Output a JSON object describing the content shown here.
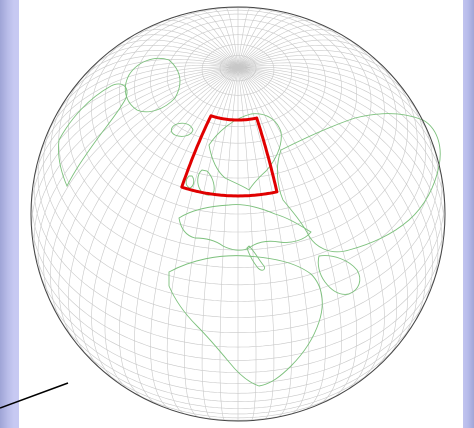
{
  "colors": {
    "background": "#c7c9f2",
    "panel": "#ffffff",
    "graticule": "#c8c8c8",
    "coastline": "#7cc07c",
    "globe_outline": "#444444",
    "region_box": "#e00000",
    "pointer_line": "#000000"
  },
  "map": {
    "projection": "orthographic",
    "graticule_step_degrees": 5,
    "center": {
      "lon": 15,
      "lat": 45
    },
    "highlight_region": {
      "label": "",
      "lon_min": -10,
      "lon_max": 32,
      "lat_min": 50,
      "lat_max": 72
    }
  }
}
